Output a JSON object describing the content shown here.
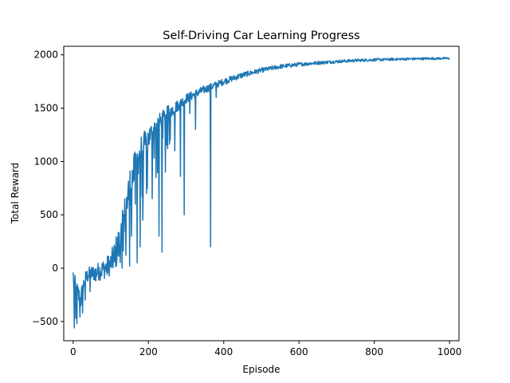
{
  "chart_data": {
    "type": "line",
    "title": "Self-Driving Car Learning Progress",
    "xlabel": "Episode",
    "ylabel": "Total Reward",
    "xlim": [
      -25,
      1025
    ],
    "ylim": [
      -680,
      2080
    ],
    "xticks": [
      0,
      200,
      400,
      600,
      800,
      1000
    ],
    "yticks": [
      -500,
      0,
      500,
      1000,
      1500,
      2000
    ],
    "xtick_labels": [
      "0",
      "200",
      "400",
      "600",
      "800",
      "1000"
    ],
    "ytick_labels": [
      "−500",
      "0",
      "500",
      "1000",
      "1500",
      "2000"
    ],
    "grid": false,
    "legend": "none",
    "series": [
      {
        "color": "#1f77b4",
        "episodes": [
          0,
          1000
        ],
        "trend_points": [
          [
            0,
            -150
          ],
          [
            10,
            -230
          ],
          [
            20,
            -300
          ],
          [
            30,
            -120
          ],
          [
            40,
            -60
          ],
          [
            60,
            -40
          ],
          [
            80,
            -10
          ],
          [
            100,
            40
          ],
          [
            120,
            200
          ],
          [
            130,
            300
          ],
          [
            140,
            550
          ],
          [
            150,
            750
          ],
          [
            160,
            880
          ],
          [
            170,
            1000
          ],
          [
            180,
            1100
          ],
          [
            200,
            1220
          ],
          [
            220,
            1330
          ],
          [
            250,
            1450
          ],
          [
            280,
            1530
          ],
          [
            300,
            1590
          ],
          [
            340,
            1660
          ],
          [
            400,
            1750
          ],
          [
            450,
            1810
          ],
          [
            500,
            1855
          ],
          [
            550,
            1890
          ],
          [
            600,
            1910
          ],
          [
            650,
            1925
          ],
          [
            700,
            1937
          ],
          [
            750,
            1947
          ],
          [
            800,
            1953
          ],
          [
            850,
            1958
          ],
          [
            900,
            1962
          ],
          [
            950,
            1965
          ],
          [
            1000,
            1967
          ]
        ],
        "noise": [
          [
            0,
            130
          ],
          [
            40,
            70
          ],
          [
            100,
            110
          ],
          [
            130,
            220
          ],
          [
            170,
            160
          ],
          [
            200,
            110
          ],
          [
            250,
            70
          ],
          [
            300,
            45
          ],
          [
            400,
            30
          ],
          [
            500,
            22
          ],
          [
            700,
            14
          ],
          [
            1000,
            10
          ]
        ],
        "dips": [
          [
            0,
            -40
          ],
          [
            3,
            -560
          ],
          [
            7,
            -470
          ],
          [
            10,
            -520
          ],
          [
            18,
            -460
          ],
          [
            25,
            -420
          ],
          [
            32,
            -300
          ],
          [
            45,
            -220
          ],
          [
            60,
            -120
          ],
          [
            90,
            -60
          ],
          [
            110,
            60
          ],
          [
            130,
            0
          ],
          [
            140,
            120
          ],
          [
            150,
            20
          ],
          [
            155,
            300
          ],
          [
            165,
            600
          ],
          [
            170,
            50
          ],
          [
            178,
            200
          ],
          [
            185,
            450
          ],
          [
            195,
            700
          ],
          [
            210,
            650
          ],
          [
            220,
            850
          ],
          [
            228,
            300
          ],
          [
            236,
            150
          ],
          [
            245,
            900
          ],
          [
            258,
            1200
          ],
          [
            270,
            1100
          ],
          [
            285,
            860
          ],
          [
            295,
            500
          ],
          [
            310,
            1450
          ],
          [
            325,
            1300
          ],
          [
            365,
            200
          ],
          [
            380,
            1600
          ]
        ]
      }
    ]
  }
}
